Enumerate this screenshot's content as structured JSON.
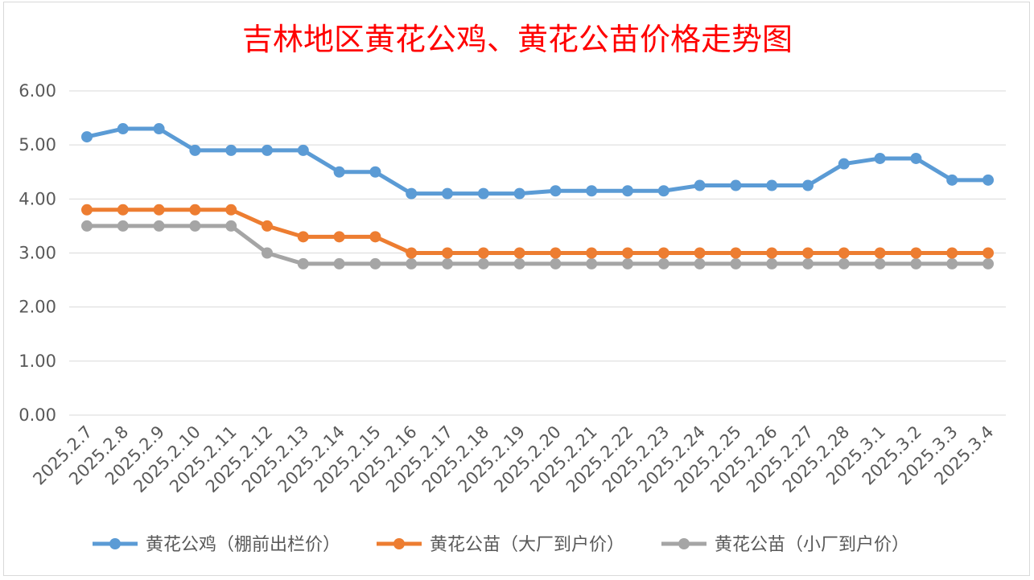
{
  "chart_data": {
    "type": "line",
    "title": "吉林地区黄花公鸡、黄花公苗价格走势图",
    "xlabel": "",
    "ylabel": "",
    "ylim": [
      0,
      6
    ],
    "yticks": [
      "0.00",
      "1.00",
      "2.00",
      "3.00",
      "4.00",
      "5.00",
      "6.00"
    ],
    "grid": true,
    "legend_position": "bottom",
    "categories": [
      "2025.2.7",
      "2025.2.8",
      "2025.2.9",
      "2025.2.10",
      "2025.2.11",
      "2025.2.12",
      "2025.2.13",
      "2025.2.14",
      "2025.2.15",
      "2025.2.16",
      "2025.2.17",
      "2025.2.18",
      "2025.2.19",
      "2025.2.20",
      "2025.2.21",
      "2025.2.22",
      "2025.2.23",
      "2025.2.24",
      "2025.2.25",
      "2025.2.26",
      "2025.2.27",
      "2025.2.28",
      "2025.3.1",
      "2025.3.2",
      "2025.3.3",
      "2025.3.4"
    ],
    "series": [
      {
        "name": "黄花公鸡（棚前出栏价）",
        "color": "#5b9bd5",
        "values": [
          5.15,
          5.3,
          5.3,
          4.9,
          4.9,
          4.9,
          4.9,
          4.5,
          4.5,
          4.1,
          4.1,
          4.1,
          4.1,
          4.15,
          4.15,
          4.15,
          4.15,
          4.25,
          4.25,
          4.25,
          4.25,
          4.65,
          4.75,
          4.75,
          4.35,
          4.35
        ]
      },
      {
        "name": "黄花公苗（大厂到户价）",
        "color": "#ed7d31",
        "values": [
          3.8,
          3.8,
          3.8,
          3.8,
          3.8,
          3.5,
          3.3,
          3.3,
          3.3,
          3.0,
          3.0,
          3.0,
          3.0,
          3.0,
          3.0,
          3.0,
          3.0,
          3.0,
          3.0,
          3.0,
          3.0,
          3.0,
          3.0,
          3.0,
          3.0,
          3.0
        ]
      },
      {
        "name": "黄花公苗（小厂到户价）",
        "color": "#a5a5a5",
        "values": [
          3.5,
          3.5,
          3.5,
          3.5,
          3.5,
          3.0,
          2.8,
          2.8,
          2.8,
          2.8,
          2.8,
          2.8,
          2.8,
          2.8,
          2.8,
          2.8,
          2.8,
          2.8,
          2.8,
          2.8,
          2.8,
          2.8,
          2.8,
          2.8,
          2.8,
          2.8
        ]
      }
    ],
    "colors": {
      "title": "#ff0000",
      "axis_text": "#595959",
      "gridline": "#d9d9d9"
    }
  }
}
